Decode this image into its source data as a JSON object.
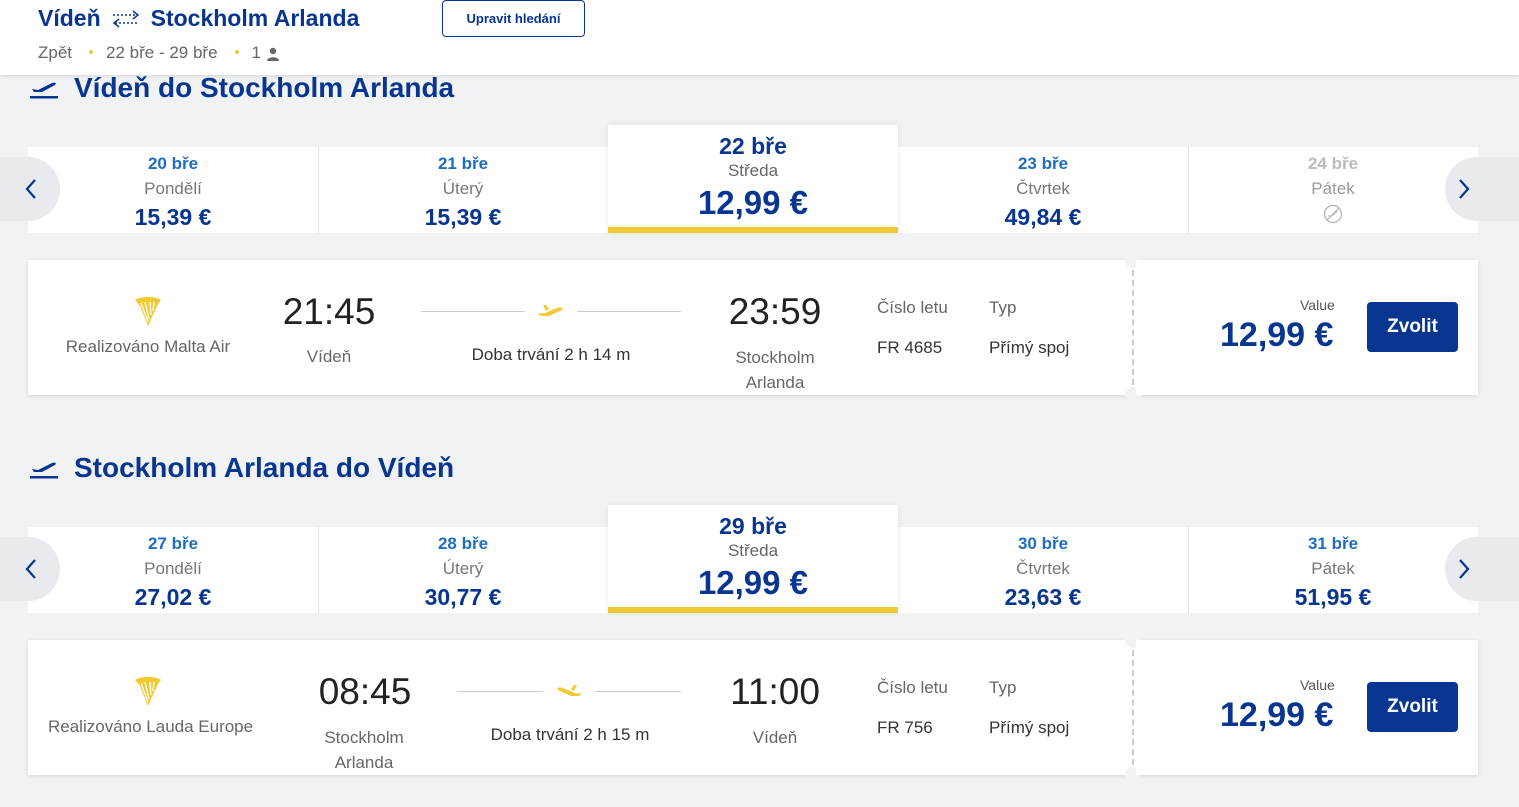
{
  "header": {
    "origin": "Vídeň",
    "destination": "Stockholm Arlanda",
    "trip_type": "Zpět",
    "dates": "22 bře - 29 bře",
    "passengers": "1",
    "edit_label": "Upravit hledání",
    "swap_icon": "swap-arrows-icon",
    "person_icon": "person-icon"
  },
  "outbound": {
    "title": "Vídeň do Stockholm Arlanda",
    "dates": [
      {
        "date": "20 bře",
        "weekday": "Pondělí",
        "price": "15,39 €"
      },
      {
        "date": "21 bře",
        "weekday": "Úterý",
        "price": "15,39 €"
      },
      {
        "date": "22 bře",
        "weekday": "Středa",
        "price": "12,99 €"
      },
      {
        "date": "23 bře",
        "weekday": "Čtvrtek",
        "price": "49,84 €"
      },
      {
        "date": "24 bře",
        "weekday": "Pátek",
        "price": ""
      }
    ],
    "flight": {
      "operator": "Realizováno Malta Air",
      "dep_time": "21:45",
      "dep_place": "Vídeň",
      "duration": "Doba trvání 2 h 14 m",
      "arr_time": "23:59",
      "arr_place": "Stockholm Arlanda",
      "flight_no_label": "Číslo letu",
      "flight_no": "FR 4685",
      "type_label": "Typ",
      "type": "Přímý spoj",
      "fare_label": "Value",
      "price": "12,99 €",
      "select_label": "Zvolit"
    }
  },
  "inbound": {
    "title": "Stockholm Arlanda do Vídeň",
    "dates": [
      {
        "date": "27 bře",
        "weekday": "Pondělí",
        "price": "27,02 €"
      },
      {
        "date": "28 bře",
        "weekday": "Úterý",
        "price": "30,77 €"
      },
      {
        "date": "29 bře",
        "weekday": "Středa",
        "price": "12,99 €"
      },
      {
        "date": "30 bře",
        "weekday": "Čtvrtek",
        "price": "23,63 €"
      },
      {
        "date": "31 bře",
        "weekday": "Pátek",
        "price": "51,95 €"
      }
    ],
    "flight": {
      "operator": "Realizováno Lauda Europe",
      "dep_time": "08:45",
      "dep_place": "Stockholm Arlanda",
      "duration": "Doba trvání 2 h 15 m",
      "arr_time": "11:00",
      "arr_place": "Vídeň",
      "flight_no_label": "Číslo letu",
      "flight_no": "FR 756",
      "type_label": "Typ",
      "type": "Přímý spoj",
      "fare_label": "Value",
      "price": "12,99 €",
      "select_label": "Zvolit"
    }
  },
  "colors": {
    "brand": "#073590",
    "accent": "#f1c933",
    "link": "#1d6dc1"
  }
}
